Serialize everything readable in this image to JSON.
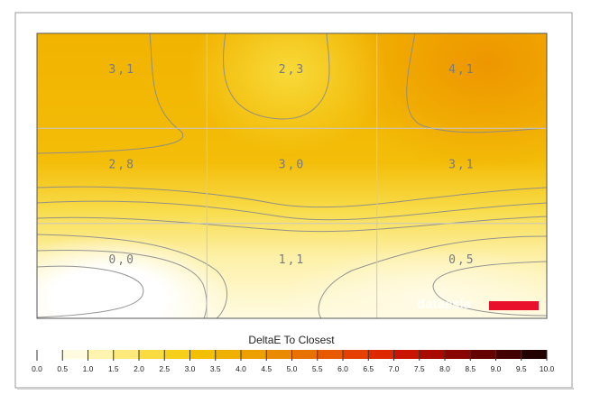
{
  "chart_data": {
    "type": "heatmap",
    "title": "",
    "xlabel": "",
    "ylabel": "",
    "grid": true,
    "grid_cols": 3,
    "grid_rows": 3,
    "cells": [
      {
        "row": 0,
        "col": 0,
        "label": "3,1",
        "value": 3.1
      },
      {
        "row": 0,
        "col": 1,
        "label": "2,3",
        "value": 2.3
      },
      {
        "row": 0,
        "col": 2,
        "label": "4,1",
        "value": 4.1
      },
      {
        "row": 1,
        "col": 0,
        "label": "2,8",
        "value": 2.8
      },
      {
        "row": 1,
        "col": 1,
        "label": "3,0",
        "value": 3.0
      },
      {
        "row": 1,
        "col": 2,
        "label": "3,1",
        "value": 3.1
      },
      {
        "row": 2,
        "col": 0,
        "label": "0,0",
        "value": 0.0
      },
      {
        "row": 2,
        "col": 1,
        "label": "1,1",
        "value": 1.1
      },
      {
        "row": 2,
        "col": 2,
        "label": "0,5",
        "value": 0.5
      }
    ],
    "colorbar": {
      "title": "DeltaE To Closest",
      "min": 0.0,
      "max": 10.0,
      "ticks": [
        "0.0",
        "0.5",
        "1.0",
        "1.5",
        "2.0",
        "2.5",
        "3.0",
        "3.5",
        "4.0",
        "4.5",
        "5.0",
        "5.5",
        "6.0",
        "6.5",
        "7.0",
        "7.5",
        "8.0",
        "8.5",
        "9.0",
        "9.5",
        "10.0"
      ],
      "colors": [
        "#ffffff",
        "#fffbe0",
        "#fff3b0",
        "#ffe97a",
        "#fbdc40",
        "#f6cf1a",
        "#f2c000",
        "#f0b000",
        "#ee9f00",
        "#ea8a00",
        "#e87200",
        "#e85a00",
        "#e64000",
        "#dd2800",
        "#c81400",
        "#a80a00",
        "#880500",
        "#640200",
        "#420000",
        "#220000",
        "#000000"
      ]
    },
    "watermark": "dataesla",
    "accent": "#e8102a"
  }
}
